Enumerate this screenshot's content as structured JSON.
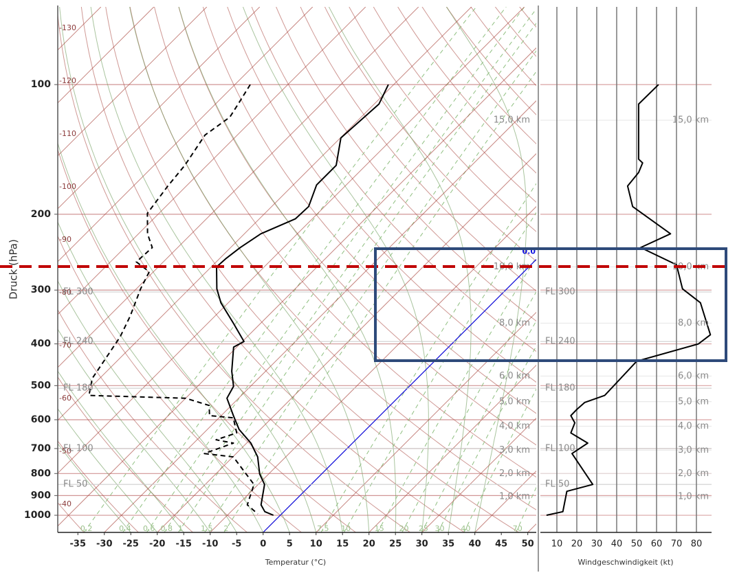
{
  "chart_data": [
    {
      "type": "skewt",
      "ylabel": "Druck (hPa)",
      "xlabel": "Temperatur (°C)",
      "log_y": true,
      "ylim": [
        1096,
        66
      ],
      "yticks": [
        100,
        200,
        300,
        400,
        500,
        600,
        700,
        800,
        900,
        1000
      ],
      "xlim": [
        -38.8,
        51.6
      ],
      "xticks": [
        -35,
        -30,
        -25,
        -20,
        -15,
        -10,
        -5,
        0,
        5,
        10,
        15,
        20,
        25,
        30,
        35,
        40,
        45,
        50
      ],
      "isotherm_labels": [
        -130,
        -120,
        -110,
        -100,
        -90,
        -80,
        -70,
        -60,
        -50,
        -40
      ],
      "mixing_ratio_labels": [
        0.2,
        0.4,
        0.6,
        0.8,
        1,
        1.5,
        2,
        7.5,
        10,
        15,
        20,
        25,
        30,
        40,
        70
      ],
      "freezing": {
        "value": 0,
        "label": "0.0",
        "color": "#1010e0"
      },
      "flight_levels": [
        {
          "label": "FL 300",
          "p": 303
        },
        {
          "label": "FL 240",
          "p": 395
        },
        {
          "label": "FL 180",
          "p": 507
        },
        {
          "label": "FL 100",
          "p": 700
        },
        {
          "label": "FL 50",
          "p": 848
        }
      ],
      "height_levels": [
        {
          "label": "15,0 km",
          "p": 121
        },
        {
          "label": "10,0 km",
          "p": 265
        },
        {
          "label": "8,0 km",
          "p": 358
        },
        {
          "label": "6,0 km",
          "p": 475
        },
        {
          "label": "5,0 km",
          "p": 545
        },
        {
          "label": "4,0 km",
          "p": 621
        },
        {
          "label": "3,0 km",
          "p": 706
        },
        {
          "label": "2,0 km",
          "p": 800
        },
        {
          "label": "1,0 km",
          "p": 906
        }
      ],
      "series": [
        {
          "color": "#000000",
          "style": "solid",
          "pressure": [
            100,
            111,
            133,
            154,
            171,
            192,
            205,
            222,
            239,
            253,
            265,
            298,
            321,
            358,
            395,
            407,
            463,
            502,
            535,
            587,
            632,
            680,
            732,
            802,
            848,
            946,
            981,
            1000
          ],
          "values": [
            -61.0,
            -59.1,
            -59.9,
            -55.6,
            -55.6,
            -53.0,
            -53.2,
            -56.9,
            -58.2,
            -58.8,
            -59.0,
            -54.8,
            -51.4,
            -45.2,
            -39.7,
            -40.6,
            -36.4,
            -33.2,
            -32.2,
            -27.7,
            -24.0,
            -19.2,
            -15.3,
            -11.7,
            -8.8,
            -5.6,
            -3.6,
            -1.3
          ]
        },
        {
          "color": "#000000",
          "style": "dashed",
          "pressure": [
            100,
            111,
            119,
            131,
            154,
            172,
            199,
            222,
            239,
            258,
            272,
            298,
            345,
            385,
            430,
            481,
            527,
            535,
            556,
            587,
            594,
            644,
            668,
            680,
            719,
            732,
            848,
            946,
            993
          ],
          "values": [
            -87.1,
            -85.7,
            -84.8,
            -86.1,
            -84.2,
            -83.5,
            -82.2,
            -78.3,
            -74.8,
            -75.1,
            -70.8,
            -69.2,
            -66.0,
            -64.0,
            -62.7,
            -61.4,
            -58.8,
            -40.0,
            -34.2,
            -32.2,
            -27.3,
            -23.8,
            -26.4,
            -22.5,
            -26.0,
            -19.9,
            -10.8,
            -8.2,
            -4.5
          ]
        }
      ]
    },
    {
      "type": "line",
      "xlabel": "Windgeschwindigkeit (kt)",
      "xlim": [
        0,
        87.6
      ],
      "xticks": [
        10,
        20,
        30,
        40,
        50,
        60,
        70,
        80
      ],
      "grid": true,
      "series": [
        {
          "color": "#000000",
          "pressure": [
            100,
            111,
            149,
            152,
            160,
            172,
            192,
            222,
            239,
            262,
            298,
            321,
            381,
            400,
            439,
            527,
            547,
            568,
            587,
            610,
            644,
            680,
            719,
            848,
            880,
            981,
            1000
          ],
          "values": [
            61,
            51,
            51,
            53,
            51,
            45.5,
            48,
            67,
            52,
            70,
            73,
            82,
            87,
            81,
            50,
            34,
            24,
            20,
            17,
            19,
            17,
            25.5,
            17.6,
            28,
            15,
            13,
            4.8
          ]
        }
      ]
    }
  ]
}
